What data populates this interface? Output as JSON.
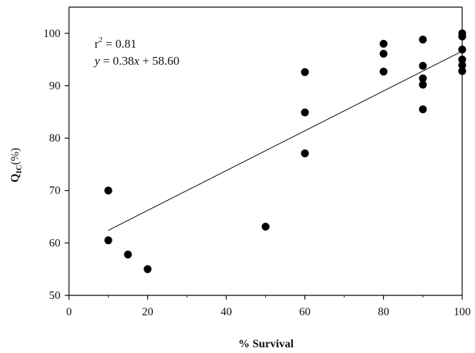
{
  "chart_data": {
    "type": "scatter",
    "title": "",
    "xlabel": "% Survival",
    "ylabel_main": "Q",
    "ylabel_sub": "IC",
    "ylabel_rest": "(%)",
    "xlim": [
      0,
      100
    ],
    "ylim": [
      50,
      105
    ],
    "xticks": [
      0,
      20,
      40,
      60,
      80,
      100
    ],
    "yticks": [
      50,
      60,
      70,
      80,
      90,
      100
    ],
    "grid": false,
    "legend": "none",
    "points": [
      {
        "x": 10,
        "y": 70.0
      },
      {
        "x": 10,
        "y": 60.5
      },
      {
        "x": 15,
        "y": 57.8
      },
      {
        "x": 20,
        "y": 55.0
      },
      {
        "x": 50,
        "y": 63.1
      },
      {
        "x": 60,
        "y": 92.6
      },
      {
        "x": 60,
        "y": 84.9
      },
      {
        "x": 60,
        "y": 77.1
      },
      {
        "x": 80,
        "y": 98.0
      },
      {
        "x": 80,
        "y": 96.1
      },
      {
        "x": 80,
        "y": 92.7
      },
      {
        "x": 90,
        "y": 98.8
      },
      {
        "x": 90,
        "y": 93.8
      },
      {
        "x": 90,
        "y": 91.4
      },
      {
        "x": 90,
        "y": 90.2
      },
      {
        "x": 90,
        "y": 85.5
      },
      {
        "x": 100,
        "y": 100.0
      },
      {
        "x": 100,
        "y": 99.4
      },
      {
        "x": 100,
        "y": 96.9
      },
      {
        "x": 100,
        "y": 95.0
      },
      {
        "x": 100,
        "y": 93.9
      },
      {
        "x": 100,
        "y": 92.8
      }
    ],
    "fit": {
      "slope": 0.38,
      "intercept": 58.6,
      "x_range": [
        10,
        100
      ]
    },
    "annotation": {
      "r2_label": "r",
      "r2_sup": "2",
      "r2_value": " = 0.81",
      "eq_y": "y",
      "eq_mid": " = 0.38",
      "eq_x": "x",
      "eq_rest": " + 58.60"
    },
    "colors": {
      "points": "#000000",
      "line": "#000000",
      "axis": "#000000"
    }
  }
}
